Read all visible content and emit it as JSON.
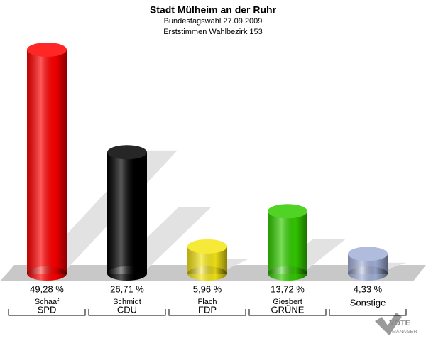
{
  "chart_data": {
    "type": "cylinder-bar",
    "title": "Stadt Mülheim an der Ruhr",
    "subtitle": [
      "Bundestagswahl 27.09.2009",
      "Erststimmen Wahlbezirk 153"
    ],
    "categories": [
      "SPD",
      "CDU",
      "FDP",
      "GRÜNE",
      "Sonstige"
    ],
    "candidates": [
      "Schaaf",
      "Schmidt",
      "Flach",
      "Giesbert",
      null
    ],
    "values": [
      49.28,
      26.71,
      5.96,
      13.72,
      4.33
    ],
    "value_labels": [
      "49,28 %",
      "26,71 %",
      "5,96 %",
      "13,72 %",
      "4,33 %"
    ],
    "colors": [
      "#ff0000",
      "#000000",
      "#f5e616",
      "#33cc00",
      "#a3b1d9"
    ],
    "brand": [
      "VOTE",
      "MANAGER"
    ]
  }
}
